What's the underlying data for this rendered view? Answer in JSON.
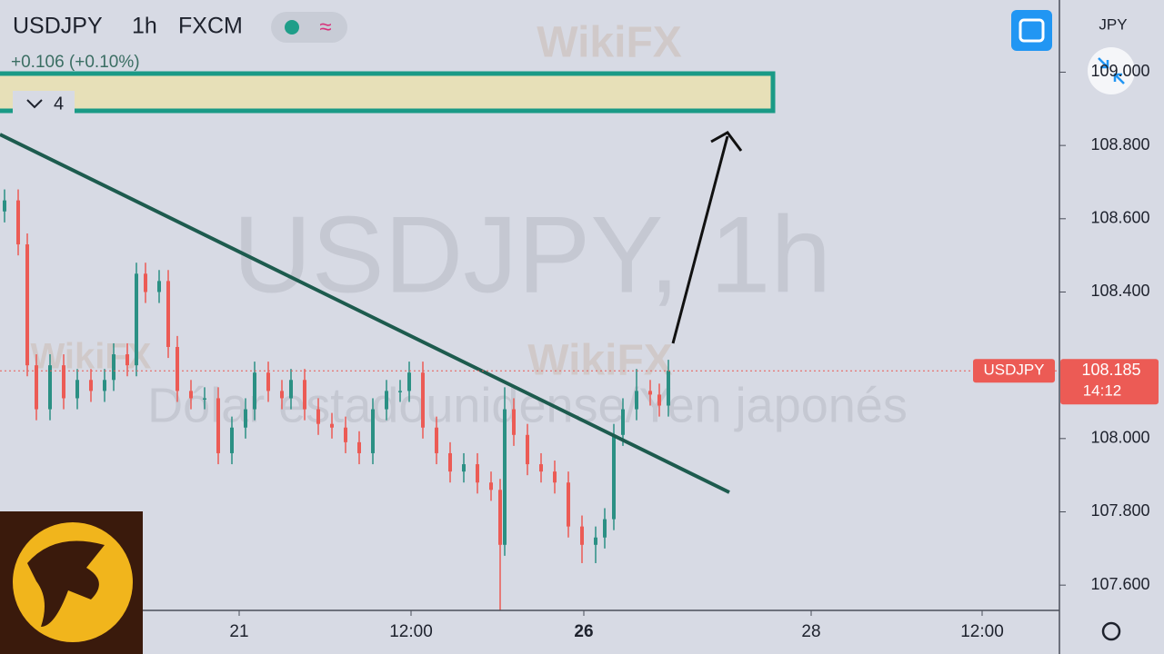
{
  "header": {
    "symbol": "USDJPY",
    "interval": "1h",
    "exchange": "FXCM",
    "change": "+0.106 (+0.10%)",
    "indicator_count": "4"
  },
  "watermark": {
    "symbol": "USDJPY, 1h",
    "description": "Dólar estadounidense/Yen japonés",
    "brand": "WikiFX"
  },
  "chart_data": {
    "type": "candlestick",
    "x": [
      1,
      4,
      6,
      8,
      11,
      14,
      17,
      20,
      23,
      25,
      28,
      30,
      32,
      35,
      37,
      39,
      42,
      45,
      48,
      51,
      54,
      56,
      59,
      62,
      64,
      67,
      70,
      73,
      76,
      79,
      82,
      85,
      88,
      90,
      93,
      96,
      99,
      102,
      105,
      108,
      110,
      111,
      113,
      116,
      119,
      122,
      125,
      128,
      131,
      133,
      135,
      137,
      140,
      143,
      145,
      147
    ],
    "open": [
      108.62,
      108.65,
      108.53,
      108.2,
      108.08,
      108.2,
      108.11,
      108.16,
      108.13,
      108.16,
      108.23,
      108.2,
      108.45,
      108.4,
      108.43,
      108.25,
      108.13,
      108.11,
      108.11,
      107.96,
      108.03,
      108.08,
      108.18,
      108.13,
      108.11,
      108.16,
      108.08,
      108.04,
      108.03,
      107.99,
      107.96,
      108.08,
      108.13,
      108.13,
      108.18,
      108.03,
      107.96,
      107.91,
      107.93,
      107.88,
      107.86,
      107.71,
      108.08,
      108.01,
      107.93,
      107.91,
      107.88,
      107.76,
      107.71,
      107.73,
      107.78,
      108.01,
      108.08,
      108.13,
      108.12,
      108.09
    ],
    "high": [
      108.68,
      108.68,
      108.56,
      108.23,
      108.23,
      108.23,
      108.19,
      108.19,
      108.19,
      108.26,
      108.26,
      108.48,
      108.48,
      108.46,
      108.46,
      108.28,
      108.16,
      108.14,
      108.14,
      108.06,
      108.11,
      108.21,
      108.21,
      108.16,
      108.19,
      108.19,
      108.11,
      108.07,
      108.06,
      108.02,
      108.11,
      108.16,
      108.16,
      108.21,
      108.21,
      108.06,
      107.99,
      107.96,
      107.96,
      107.91,
      107.89,
      108.14,
      108.11,
      108.04,
      107.96,
      107.94,
      107.91,
      107.79,
      107.76,
      107.81,
      108.04,
      108.11,
      108.19,
      108.16,
      108.15,
      108.215
    ],
    "low": [
      108.59,
      108.5,
      108.17,
      108.05,
      108.05,
      108.08,
      108.08,
      108.1,
      108.1,
      108.13,
      108.17,
      108.17,
      108.37,
      108.37,
      108.22,
      108.1,
      108.08,
      108.08,
      107.93,
      107.93,
      108.0,
      108.05,
      108.1,
      108.08,
      108.08,
      108.05,
      108.01,
      108.0,
      107.96,
      107.93,
      107.93,
      108.05,
      108.1,
      108.1,
      108.0,
      107.93,
      107.88,
      107.88,
      107.85,
      107.83,
      107.53,
      107.68,
      107.98,
      107.9,
      107.88,
      107.85,
      107.73,
      107.66,
      107.66,
      107.7,
      107.75,
      107.98,
      108.05,
      108.09,
      108.06,
      108.06
    ],
    "close": [
      108.65,
      108.53,
      108.2,
      108.08,
      108.2,
      108.11,
      108.16,
      108.13,
      108.16,
      108.23,
      108.2,
      108.45,
      108.4,
      108.43,
      108.25,
      108.13,
      108.11,
      108.11,
      107.96,
      108.03,
      108.08,
      108.18,
      108.13,
      108.11,
      108.16,
      108.08,
      108.04,
      108.03,
      107.99,
      107.96,
      108.08,
      108.13,
      108.13,
      108.18,
      108.03,
      107.96,
      107.91,
      107.93,
      107.88,
      107.86,
      107.71,
      108.08,
      108.01,
      107.93,
      107.91,
      107.88,
      107.76,
      107.71,
      107.73,
      107.78,
      108.01,
      108.08,
      108.13,
      108.12,
      108.09,
      108.185
    ],
    "up_color": "#2b9084",
    "down_color": "#ec5b55",
    "xlim": [
      0,
      233
    ],
    "ylim": [
      107.531,
      109.197
    ],
    "xticks": [
      {
        "value": 52.6,
        "label": "21"
      },
      {
        "value": 90.4,
        "label": "12:00"
      },
      {
        "value": 128.4,
        "label": "26"
      },
      {
        "value": 178.4,
        "label": "28"
      },
      {
        "value": 216,
        "label": "12:00"
      }
    ],
    "yticks": [
      {
        "value": 107.6,
        "label": "107.600"
      },
      {
        "value": 107.8,
        "label": "107.800"
      },
      {
        "value": 108.0,
        "label": "108.000"
      },
      {
        "value": 108.4,
        "label": "108.400"
      },
      {
        "value": 108.6,
        "label": "108.600"
      },
      {
        "value": 108.8,
        "label": "108.800"
      },
      {
        "value": 109.0,
        "label": "109.000"
      }
    ],
    "y_unit": "JPY",
    "last_price": {
      "name": "USDJPY",
      "value": 108.185,
      "countdown": "14:12"
    }
  }
}
